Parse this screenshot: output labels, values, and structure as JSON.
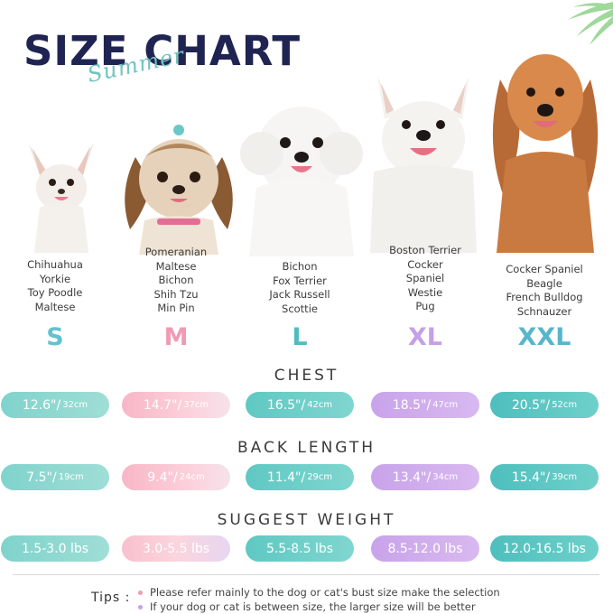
{
  "header": {
    "title": "SIZE CHART",
    "subtitle": "Summer"
  },
  "sizes": [
    {
      "label": "S",
      "color": "#63c2cc",
      "breeds": [
        "Chihuahua",
        "Yorkie",
        "Toy Poodle",
        "Maltese"
      ],
      "chest": {
        "in": "12.6\"",
        "cm": "32cm"
      },
      "back": {
        "in": "7.5\"",
        "cm": "19cm"
      },
      "weight": "1.5-3.0 lbs"
    },
    {
      "label": "M",
      "color": "#f19ab3",
      "breeds": [
        "Pomeranian",
        "Maltese",
        "Bichon",
        "Shih Tzu",
        "Min Pin"
      ],
      "chest": {
        "in": "14.7\"",
        "cm": "37cm"
      },
      "back": {
        "in": "9.4\"",
        "cm": "24cm"
      },
      "weight": "3.0-5.5 lbs"
    },
    {
      "label": "L",
      "color": "#4fbcc0",
      "breeds": [
        "Bichon",
        "Fox Terrier",
        "Jack Russell",
        "Scottie"
      ],
      "chest": {
        "in": "16.5\"",
        "cm": "42cm"
      },
      "back": {
        "in": "11.4\"",
        "cm": "29cm"
      },
      "weight": "5.5-8.5 lbs"
    },
    {
      "label": "XL",
      "color": "#c4a0e6",
      "breeds": [
        "Boston Terrier",
        "Cocker",
        "Spaniel",
        "Westie",
        "Pug"
      ],
      "chest": {
        "in": "18.5\"",
        "cm": "47cm"
      },
      "back": {
        "in": "13.4\"",
        "cm": "34cm"
      },
      "weight": "8.5-12.0 lbs"
    },
    {
      "label": "XXL",
      "color": "#57b6cc",
      "breeds": [
        "Cocker Spaniel",
        "Beagle",
        "French Bulldog",
        "Schnauzer"
      ],
      "chest": {
        "in": "20.5\"",
        "cm": "52cm"
      },
      "back": {
        "in": "15.4\"",
        "cm": "39cm"
      },
      "weight": "12.0-16.5 lbs"
    }
  ],
  "sections": {
    "chest": "CHEST",
    "back": "BACK LENGTH",
    "weight": "SUGGEST WEIGHT"
  },
  "tips": {
    "label": "Tips :",
    "items": [
      {
        "text": "Please refer mainly to the dog or cat's bust size make the selection",
        "color": "#f19ab3"
      },
      {
        "text": "If your dog or cat is between size, the larger size will be better",
        "color": "#c4a0e6"
      }
    ]
  }
}
